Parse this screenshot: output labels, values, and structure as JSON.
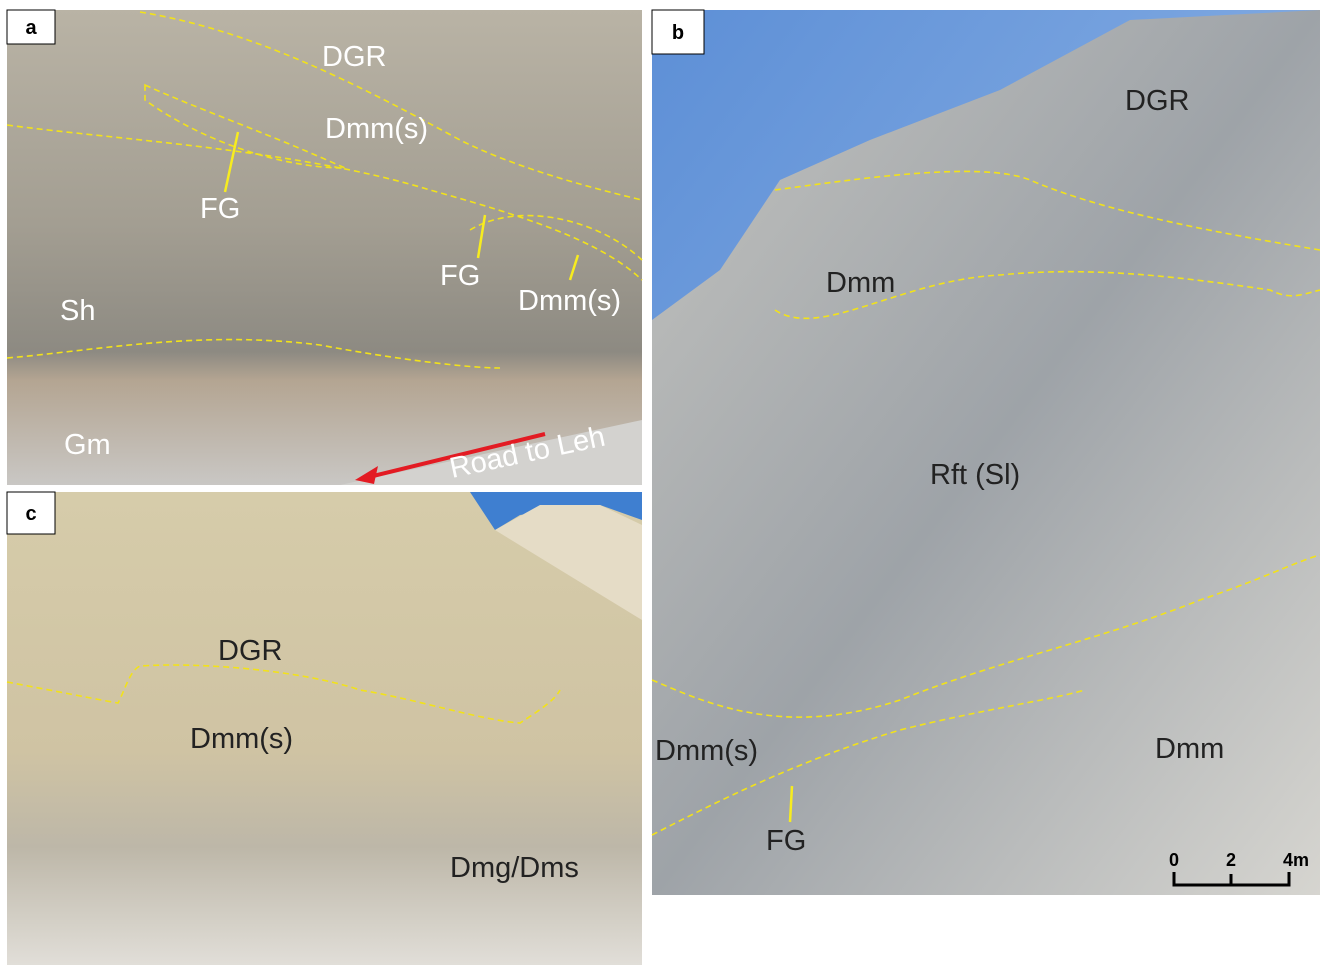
{
  "panels": [
    {
      "letter": "a",
      "labels": [
        "DGR",
        "Dmm(s)",
        "FG",
        "FG",
        "Dmm(s)",
        "Sh",
        "Gm",
        "Road to Leh"
      ]
    },
    {
      "letter": "b",
      "labels": [
        "DGR",
        "Dmm",
        "Rft (Sl)",
        "Dmm(s)",
        "Dmm",
        "FG"
      ],
      "scale_bar": [
        "0",
        "2",
        "4m"
      ]
    },
    {
      "letter": "c",
      "labels": [
        "DGR",
        "Dmm(s)",
        "Dmg/Dms"
      ]
    }
  ]
}
